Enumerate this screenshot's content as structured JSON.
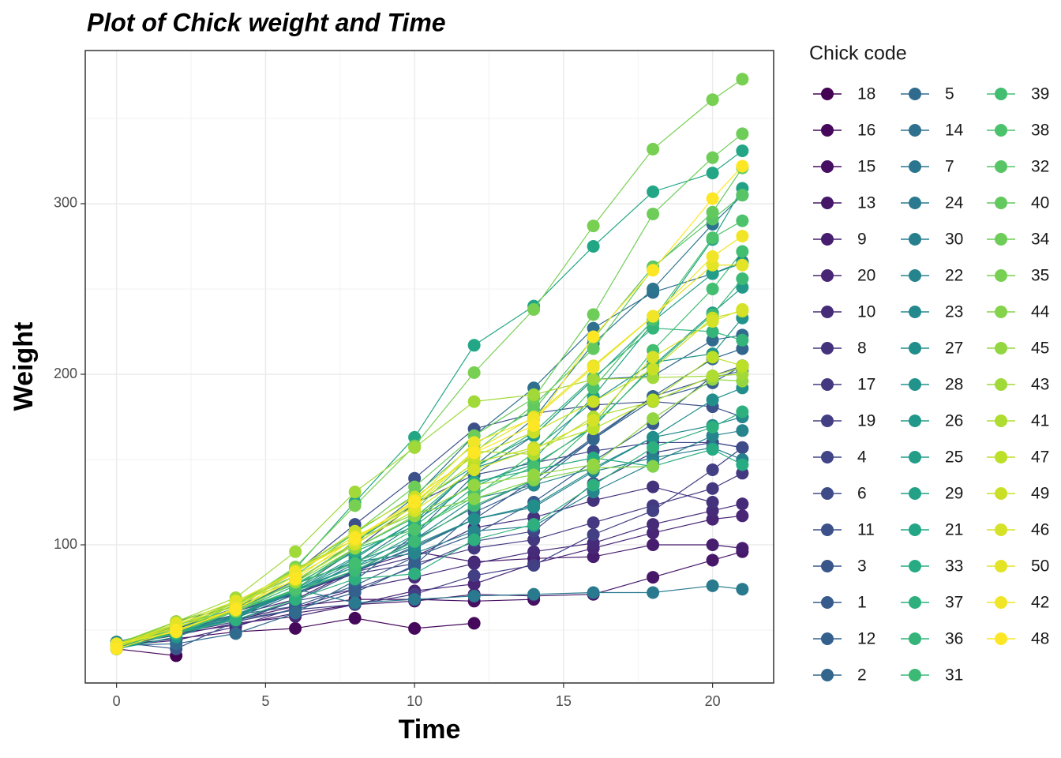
{
  "chart_data": {
    "type": "line",
    "title": "Plot of Chick weight and Time",
    "x_label": "Time",
    "y_label": "Weight",
    "legend_title": "Chick code",
    "x": [
      0,
      2,
      4,
      6,
      8,
      10,
      12,
      14,
      16,
      18,
      20,
      21
    ],
    "xlim": [
      -1.05,
      22.05
    ],
    "xticks": [
      0,
      5,
      10,
      15,
      20
    ],
    "ylim": [
      19,
      389.8
    ],
    "yticks": [
      100,
      200,
      300
    ],
    "grid": true,
    "legend": "right",
    "series": [
      {
        "name": "18",
        "color": "#440154",
        "values": [
          39,
          35,
          null,
          null,
          null,
          null,
          null,
          null,
          null,
          null,
          null,
          null
        ]
      },
      {
        "name": "16",
        "color": "#45085B",
        "values": [
          41,
          45,
          49,
          51,
          57,
          51,
          54,
          null,
          null,
          null,
          null,
          null
        ]
      },
      {
        "name": "15",
        "color": "#460F62",
        "values": [
          41,
          49,
          56,
          64,
          68,
          68,
          67,
          68,
          null,
          null,
          null,
          null
        ]
      },
      {
        "name": "13",
        "color": "#461668",
        "values": [
          41,
          48,
          53,
          60,
          65,
          67,
          71,
          70,
          71,
          81,
          91,
          96
        ]
      },
      {
        "name": "9",
        "color": "#471E6F",
        "values": [
          42,
          51,
          59,
          68,
          85,
          96,
          90,
          92,
          93,
          100,
          100,
          98
        ]
      },
      {
        "name": "20",
        "color": "#482575",
        "values": [
          41,
          47,
          54,
          58,
          65,
          73,
          77,
          89,
          98,
          107,
          115,
          117
        ]
      },
      {
        "name": "10",
        "color": "#462B79",
        "values": [
          41,
          44,
          52,
          63,
          74,
          81,
          89,
          96,
          101,
          112,
          120,
          124
        ]
      },
      {
        "name": "8",
        "color": "#45327D",
        "values": [
          42,
          50,
          61,
          71,
          84,
          93,
          110,
          116,
          126,
          134,
          125,
          null
        ]
      },
      {
        "name": "17",
        "color": "#443880",
        "values": [
          42,
          51,
          61,
          72,
          83,
          89,
          98,
          103,
          113,
          123,
          133,
          142
        ]
      },
      {
        "name": "19",
        "color": "#423F84",
        "values": [
          43,
          48,
          55,
          62,
          65,
          71,
          82,
          88,
          106,
          120,
          144,
          157
        ]
      },
      {
        "name": "4",
        "color": "#404587",
        "values": [
          42,
          49,
          56,
          67,
          74,
          87,
          102,
          108,
          136,
          154,
          160,
          157
        ]
      },
      {
        "name": "6",
        "color": "#3E4B89",
        "values": [
          41,
          49,
          59,
          74,
          97,
          124,
          141,
          148,
          155,
          160,
          160,
          157
        ]
      },
      {
        "name": "11",
        "color": "#3C508A",
        "values": [
          43,
          51,
          63,
          84,
          112,
          139,
          168,
          177,
          182,
          184,
          181,
          175
        ]
      },
      {
        "name": "3",
        "color": "#39568B",
        "values": [
          43,
          39,
          55,
          67,
          84,
          99,
          115,
          138,
          163,
          187,
          198,
          202
        ]
      },
      {
        "name": "1",
        "color": "#375B8C",
        "values": [
          42,
          51,
          59,
          64,
          76,
          93,
          106,
          125,
          149,
          171,
          199,
          205
        ]
      },
      {
        "name": "12",
        "color": "#34608D",
        "values": [
          41,
          49,
          56,
          62,
          72,
          88,
          119,
          135,
          162,
          185,
          195,
          205
        ]
      },
      {
        "name": "2",
        "color": "#32668D",
        "values": [
          40,
          49,
          58,
          72,
          84,
          103,
          122,
          138,
          162,
          187,
          209,
          215
        ]
      },
      {
        "name": "5",
        "color": "#306B8E",
        "values": [
          41,
          42,
          48,
          60,
          79,
          106,
          141,
          164,
          197,
          199,
          220,
          223
        ]
      },
      {
        "name": "14",
        "color": "#2E708E",
        "values": [
          41,
          49,
          62,
          79,
          101,
          128,
          164,
          192,
          227,
          248,
          259,
          266
        ]
      },
      {
        "name": "7",
        "color": "#2B758E",
        "values": [
          41,
          49,
          57,
          71,
          89,
          112,
          146,
          174,
          218,
          250,
          288,
          305
        ]
      },
      {
        "name": "24",
        "color": "#297A8E",
        "values": [
          42,
          52,
          58,
          74,
          66,
          68,
          70,
          71,
          72,
          72,
          76,
          74
        ]
      },
      {
        "name": "30",
        "color": "#277F8D",
        "values": [
          42,
          48,
          59,
          72,
          85,
          98,
          115,
          122,
          143,
          151,
          157,
          150
        ]
      },
      {
        "name": "22",
        "color": "#26848D",
        "values": [
          41,
          55,
          64,
          77,
          90,
          95,
          108,
          111,
          131,
          148,
          164,
          167
        ]
      },
      {
        "name": "23",
        "color": "#24898D",
        "values": [
          43,
          52,
          61,
          73,
          90,
          103,
          127,
          135,
          145,
          163,
          170,
          175
        ]
      },
      {
        "name": "27",
        "color": "#228E8C",
        "values": [
          39,
          46,
          58,
          73,
          87,
          100,
          115,
          123,
          144,
          163,
          185,
          192
        ]
      },
      {
        "name": "28",
        "color": "#21938B",
        "values": [
          39,
          46,
          58,
          73,
          92,
          114,
          145,
          156,
          184,
          207,
          212,
          233
        ]
      },
      {
        "name": "26",
        "color": "#219889",
        "values": [
          42,
          48,
          57,
          74,
          93,
          114,
          136,
          147,
          169,
          205,
          236,
          251
        ]
      },
      {
        "name": "25",
        "color": "#229D88",
        "values": [
          40,
          49,
          62,
          78,
          102,
          124,
          146,
          164,
          197,
          231,
          259,
          265
        ]
      },
      {
        "name": "29",
        "color": "#22A186",
        "values": [
          39,
          48,
          59,
          74,
          87,
          106,
          134,
          150,
          187,
          230,
          279,
          309
        ]
      },
      {
        "name": "21",
        "color": "#22A685",
        "values": [
          40,
          50,
          62,
          86,
          125,
          163,
          217,
          240,
          275,
          307,
          318,
          331
        ]
      },
      {
        "name": "33",
        "color": "#26AB82",
        "values": [
          39,
          50,
          63,
          77,
          96,
          111,
          137,
          144,
          151,
          146,
          156,
          147
        ]
      },
      {
        "name": "37",
        "color": "#2DB07E",
        "values": [
          41,
          48,
          56,
          68,
          80,
          83,
          103,
          112,
          135,
          157,
          169,
          178
        ]
      },
      {
        "name": "36",
        "color": "#34B479",
        "values": [
          39,
          48,
          61,
          76,
          98,
          116,
          145,
          166,
          198,
          227,
          225,
          220
        ]
      },
      {
        "name": "31",
        "color": "#3BB975",
        "values": [
          42,
          53,
          62,
          73,
          85,
          102,
          123,
          138,
          170,
          204,
          235,
          256
        ]
      },
      {
        "name": "39",
        "color": "#42BE71",
        "values": [
          42,
          50,
          61,
          78,
          89,
          109,
          130,
          146,
          170,
          214,
          250,
          272
        ]
      },
      {
        "name": "38",
        "color": "#4CC26C",
        "values": [
          41,
          49,
          61,
          74,
          98,
          109,
          128,
          154,
          192,
          232,
          280,
          290
        ]
      },
      {
        "name": "32",
        "color": "#57C565",
        "values": [
          41,
          49,
          65,
          82,
          107,
          129,
          159,
          179,
          221,
          263,
          291,
          305
        ]
      },
      {
        "name": "40",
        "color": "#62C95F",
        "values": [
          41,
          55,
          66,
          79,
          101,
          120,
          154,
          182,
          215,
          262,
          295,
          321
        ]
      },
      {
        "name": "34",
        "color": "#6DCD58",
        "values": [
          41,
          49,
          63,
          85,
          107,
          134,
          164,
          186,
          235,
          294,
          327,
          341
        ]
      },
      {
        "name": "35",
        "color": "#78D052",
        "values": [
          41,
          53,
          64,
          87,
          123,
          158,
          201,
          238,
          287,
          332,
          361,
          373
        ]
      },
      {
        "name": "44",
        "color": "#85D34A",
        "values": [
          42,
          51,
          65,
          86,
          103,
          118,
          127,
          138,
          145,
          146,
          null,
          null
        ]
      },
      {
        "name": "45",
        "color": "#93D641",
        "values": [
          41,
          50,
          61,
          78,
          98,
          117,
          135,
          141,
          147,
          174,
          197,
          196
        ]
      },
      {
        "name": "43",
        "color": "#A0D938",
        "values": [
          42,
          55,
          69,
          96,
          131,
          157,
          184,
          188,
          197,
          198,
          199,
          200
        ]
      },
      {
        "name": "41",
        "color": "#AEDC30",
        "values": [
          42,
          51,
          66,
          85,
          103,
          124,
          155,
          153,
          175,
          184,
          199,
          204
        ]
      },
      {
        "name": "47",
        "color": "#BCDF27",
        "values": [
          41,
          53,
          66,
          79,
          100,
          123,
          148,
          157,
          168,
          185,
          210,
          205
        ]
      },
      {
        "name": "49",
        "color": "#C9E027",
        "values": [
          40,
          53,
          64,
          85,
          108,
          128,
          152,
          166,
          184,
          203,
          233,
          237
        ]
      },
      {
        "name": "46",
        "color": "#D6E227",
        "values": [
          40,
          52,
          62,
          82,
          101,
          120,
          144,
          156,
          173,
          210,
          231,
          238
        ]
      },
      {
        "name": "50",
        "color": "#E3E426",
        "values": [
          41,
          54,
          67,
          84,
          105,
          122,
          155,
          175,
          205,
          234,
          264,
          264
        ]
      },
      {
        "name": "42",
        "color": "#F0E526",
        "values": [
          42,
          49,
          63,
          84,
          103,
          126,
          160,
          174,
          204,
          234,
          269,
          281
        ]
      },
      {
        "name": "48",
        "color": "#FDE725",
        "values": [
          39,
          50,
          62,
          80,
          104,
          125,
          154,
          170,
          222,
          261,
          303,
          322
        ]
      }
    ]
  }
}
